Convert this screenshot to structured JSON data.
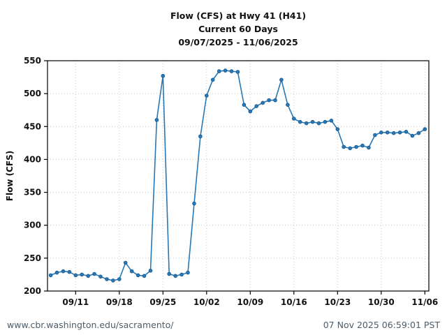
{
  "footer": {
    "url": "www.cbr.washington.edu/sacramento/",
    "timestamp": "07 Nov 2025 06:59:01 PST"
  },
  "chart_data": {
    "type": "line",
    "title": "Flow (CFS) at Hwy 41 (H41)",
    "subtitle": "Current 60 Days",
    "date_range": "09/07/2025 - 11/06/2025",
    "ylabel": "Flow (CFS)",
    "xlabel": "",
    "ylim": [
      200,
      550
    ],
    "yticks": [
      200,
      250,
      300,
      350,
      400,
      450,
      500,
      550
    ],
    "xtick_labels": [
      "09/11",
      "09/18",
      "09/25",
      "10/02",
      "10/09",
      "10/16",
      "10/23",
      "10/30",
      "11/06"
    ],
    "xtick_day_index": [
      4,
      11,
      18,
      25,
      32,
      39,
      46,
      53,
      60
    ],
    "grid": "dotted",
    "legend": "none",
    "line_color": "#2878b5",
    "marker_edge_color": "#15578f",
    "grid_color": "#c9c9c9",
    "axis_color": "#000000",
    "series": [
      {
        "name": "Flow (CFS)",
        "dates": [
          "09/07",
          "09/08",
          "09/09",
          "09/10",
          "09/11",
          "09/12",
          "09/13",
          "09/14",
          "09/15",
          "09/16",
          "09/17",
          "09/18",
          "09/19",
          "09/20",
          "09/21",
          "09/22",
          "09/23",
          "09/24",
          "09/25",
          "09/26",
          "09/27",
          "09/28",
          "09/29",
          "09/30",
          "10/01",
          "10/02",
          "10/03",
          "10/04",
          "10/05",
          "10/06",
          "10/07",
          "10/08",
          "10/09",
          "10/10",
          "10/11",
          "10/12",
          "10/13",
          "10/14",
          "10/15",
          "10/16",
          "10/17",
          "10/18",
          "10/19",
          "10/20",
          "10/21",
          "10/22",
          "10/23",
          "10/24",
          "10/25",
          "10/26",
          "10/27",
          "10/28",
          "10/29",
          "10/30",
          "10/31",
          "11/01",
          "11/02",
          "11/03",
          "11/04",
          "11/05",
          "11/06"
        ],
        "values": [
          224,
          228,
          230,
          229,
          224,
          225,
          223,
          226,
          222,
          218,
          216,
          218,
          243,
          230,
          224,
          223,
          231,
          460,
          527,
          226,
          223,
          225,
          228,
          333,
          435,
          497,
          521,
          534,
          535,
          534,
          533,
          483,
          473,
          481,
          486,
          490,
          490,
          521,
          483,
          462,
          457,
          455,
          457,
          455,
          457,
          459,
          446,
          419,
          417,
          419,
          421,
          418,
          437,
          441,
          441,
          440,
          441,
          442,
          436,
          440,
          446
        ]
      }
    ]
  }
}
